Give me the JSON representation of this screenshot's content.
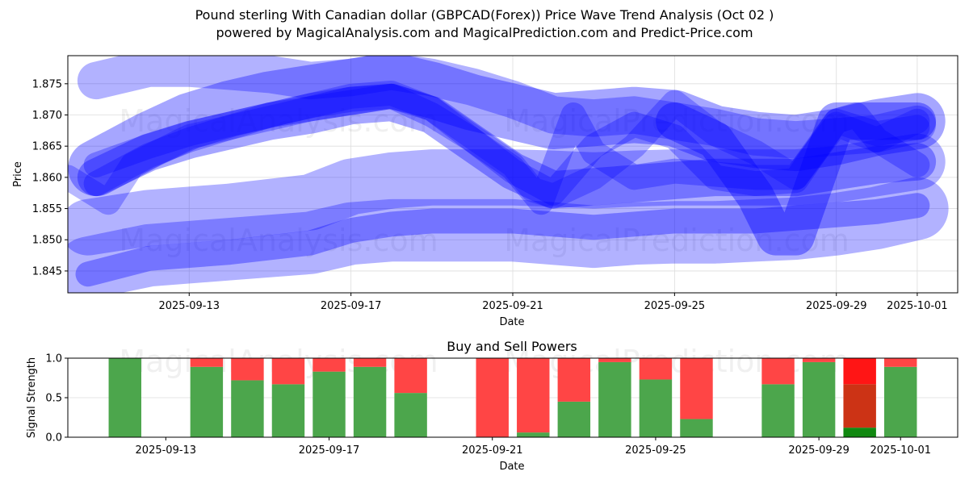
{
  "header": {
    "title_line1": "Pound sterling With Canadian dollar (GBPCAD(Forex)) Price Wave Trend Analysis (Oct 02 )",
    "title_line2": "powered by MagicalAnalysis.com and MagicalPrediction.com and Predict-Price.com"
  },
  "watermarks": [
    "MagicalAnalysis.com",
    "MagicalPrediction.com"
  ],
  "colors": {
    "band": "#0000ff",
    "buy": "#4ca64c",
    "sell": "#ff4545",
    "buy_dark": "#118811",
    "sell_dark": "#cc3315",
    "sell_bright": "#ff1515",
    "grid": "#dddddd"
  },
  "chart_data": [
    {
      "type": "area",
      "name": "price-wave-trend",
      "title": "",
      "xlabel": "Date",
      "ylabel": "Price",
      "date_origin": "2025-09-10",
      "xlim_days": [
        0.0,
        22.0
      ],
      "ylim": [
        1.8415,
        1.8795
      ],
      "yticks": [
        1.845,
        1.85,
        1.855,
        1.86,
        1.865,
        1.87,
        1.875
      ],
      "ytick_labels": [
        "1.845",
        "1.850",
        "1.855",
        "1.860",
        "1.865",
        "1.870",
        "1.875"
      ],
      "xticks_days": [
        3,
        7,
        11,
        15,
        19,
        21
      ],
      "xtick_labels": [
        "2025-09-13",
        "2025-09-17",
        "2025-09-21",
        "2025-09-25",
        "2025-09-29",
        "2025-10-01"
      ],
      "grid": true,
      "series": [
        {
          "name": "upper-wave-a",
          "width": 0.006,
          "opacity": 0.3,
          "x": [
            0.7,
            2,
            3,
            4,
            5,
            6,
            7,
            8,
            9,
            10,
            11,
            12,
            13,
            14,
            15,
            16,
            17,
            18,
            19,
            20,
            21
          ],
          "y": [
            1.8755,
            1.8775,
            1.8775,
            1.877,
            1.8765,
            1.8755,
            1.876,
            1.877,
            1.876,
            1.8745,
            1.8725,
            1.87,
            1.8695,
            1.87,
            1.869,
            1.868,
            1.8665,
            1.866,
            1.8665,
            1.867,
            1.8685
          ]
        },
        {
          "name": "upper-wave-b",
          "width": 0.009,
          "opacity": 0.35,
          "x": [
            0.7,
            2,
            3,
            4,
            5,
            6,
            7,
            8,
            9,
            10,
            11,
            12,
            13,
            14,
            15,
            16,
            17,
            18,
            19,
            20,
            21
          ],
          "y": [
            1.8615,
            1.866,
            1.869,
            1.871,
            1.8725,
            1.8735,
            1.8745,
            1.8755,
            1.874,
            1.872,
            1.8705,
            1.869,
            1.8695,
            1.87,
            1.8695,
            1.867,
            1.866,
            1.8655,
            1.8665,
            1.868,
            1.869
          ]
        },
        {
          "name": "volatile-wave-a",
          "width": 0.004,
          "opacity": 0.28,
          "x": [
            0.0,
            1.0,
            1.6,
            3,
            4,
            5,
            6,
            7,
            8,
            9,
            10,
            11,
            11.5,
            12,
            13,
            14,
            15,
            16,
            17,
            18,
            19,
            20,
            21
          ],
          "y": [
            1.86,
            1.856,
            1.862,
            1.8665,
            1.868,
            1.87,
            1.8715,
            1.873,
            1.8735,
            1.871,
            1.8665,
            1.862,
            1.858,
            1.857,
            1.86,
            1.865,
            1.872,
            1.867,
            1.864,
            1.86,
            1.8685,
            1.866,
            1.869
          ]
        },
        {
          "name": "volatile-wave-b",
          "width": 0.004,
          "opacity": 0.3,
          "x": [
            0.7,
            2,
            3,
            4,
            5,
            6,
            7,
            8,
            9,
            10,
            11,
            12,
            13,
            14,
            15,
            16,
            17,
            18,
            19,
            20,
            21
          ],
          "y": [
            1.862,
            1.865,
            1.867,
            1.8685,
            1.87,
            1.8715,
            1.8725,
            1.873,
            1.87,
            1.866,
            1.861,
            1.8575,
            1.865,
            1.8685,
            1.8665,
            1.86,
            1.859,
            1.8595,
            1.869,
            1.867,
            1.868
          ]
        },
        {
          "name": "volatile-wave-c",
          "width": 0.004,
          "opacity": 0.3,
          "x": [
            0.7,
            2,
            3,
            4,
            5,
            6,
            7,
            8,
            9,
            10,
            11,
            11.7,
            12.5,
            13,
            14,
            15,
            16,
            17,
            18,
            19,
            19.5,
            20,
            21
          ],
          "y": [
            1.859,
            1.8635,
            1.866,
            1.868,
            1.8695,
            1.871,
            1.872,
            1.873,
            1.871,
            1.866,
            1.8615,
            1.856,
            1.87,
            1.864,
            1.86,
            1.861,
            1.8605,
            1.86,
            1.86,
            1.869,
            1.87,
            1.866,
            1.862
          ]
        },
        {
          "name": "mid-wave",
          "width": 0.006,
          "opacity": 0.35,
          "x": [
            0.7,
            2,
            3,
            4,
            5,
            6,
            7,
            8,
            9,
            10,
            11,
            12,
            13,
            14,
            15,
            16,
            17,
            18,
            19,
            20,
            21
          ],
          "y": [
            1.86,
            1.864,
            1.866,
            1.8675,
            1.869,
            1.87,
            1.8715,
            1.872,
            1.87,
            1.8655,
            1.861,
            1.858,
            1.8585,
            1.859,
            1.8595,
            1.86,
            1.86,
            1.86,
            1.861,
            1.862,
            1.8625
          ]
        },
        {
          "name": "deep-wave",
          "width": 0.006,
          "opacity": 0.38,
          "x": [
            15,
            16,
            17,
            17.5,
            18,
            19,
            20,
            21
          ],
          "y": [
            1.869,
            1.866,
            1.857,
            1.8505,
            1.8505,
            1.869,
            1.869,
            1.869
          ]
        },
        {
          "name": "lower-wave-a",
          "width": 0.009,
          "opacity": 0.3,
          "x": [
            0.5,
            2,
            4,
            6,
            7,
            8,
            9,
            10,
            11,
            12,
            13,
            14,
            15,
            16,
            17,
            18,
            19,
            20,
            21
          ],
          "y": [
            1.852,
            1.8535,
            1.8545,
            1.856,
            1.8585,
            1.8595,
            1.86,
            1.86,
            1.86,
            1.8598,
            1.8595,
            1.8598,
            1.86,
            1.86,
            1.86,
            1.86,
            1.8605,
            1.8615,
            1.8625
          ]
        },
        {
          "name": "lower-wave-b",
          "width": 0.01,
          "opacity": 0.3,
          "x": [
            0.5,
            2,
            4,
            6,
            7,
            8,
            9,
            10,
            11,
            12,
            13,
            14,
            15,
            16,
            17,
            18,
            19,
            20,
            21
          ],
          "y": [
            1.8455,
            1.8475,
            1.8485,
            1.8495,
            1.851,
            1.8515,
            1.8515,
            1.8515,
            1.8515,
            1.851,
            1.8505,
            1.851,
            1.8512,
            1.8512,
            1.8515,
            1.8518,
            1.8525,
            1.8535,
            1.855
          ]
        },
        {
          "name": "lower-wave-core",
          "width": 0.004,
          "opacity": 0.35,
          "x": [
            0.5,
            2,
            4,
            6,
            7,
            8,
            9,
            10,
            11,
            12,
            13,
            14,
            15,
            16,
            17,
            18,
            19,
            20,
            21
          ],
          "y": [
            1.8445,
            1.847,
            1.848,
            1.8495,
            1.8515,
            1.8525,
            1.853,
            1.853,
            1.853,
            1.8525,
            1.852,
            1.8525,
            1.853,
            1.853,
            1.853,
            1.8535,
            1.854,
            1.8545,
            1.8555
          ]
        }
      ]
    },
    {
      "type": "bar",
      "name": "buy-sell-powers",
      "title": "Buy and Sell Powers",
      "xlabel": "Date",
      "ylabel": "Signal Strength",
      "date_origin": "2025-09-10",
      "xlim_days": [
        0.6,
        22.4
      ],
      "ylim": [
        0.0,
        1.0
      ],
      "yticks": [
        0.0,
        0.5,
        1.0
      ],
      "ytick_labels": [
        "0.0",
        "0.5",
        "1.0"
      ],
      "xticks_days": [
        3,
        7,
        11,
        15,
        19,
        21
      ],
      "xtick_labels": [
        "2025-09-13",
        "2025-09-17",
        "2025-09-21",
        "2025-09-25",
        "2025-09-29",
        "2025-10-01"
      ],
      "grid": true,
      "categories": [
        "2025-09-12",
        "2025-09-14",
        "2025-09-15",
        "2025-09-16",
        "2025-09-17",
        "2025-09-18",
        "2025-09-19",
        "2025-09-21",
        "2025-09-22",
        "2025-09-23",
        "2025-09-24",
        "2025-09-25",
        "2025-09-26",
        "2025-09-28",
        "2025-09-29",
        "2025-09-30",
        "2025-10-01"
      ],
      "days": [
        2,
        4,
        5,
        6,
        7,
        8,
        9,
        11,
        12,
        13,
        14,
        15,
        16,
        18,
        19,
        20,
        21
      ],
      "series": [
        {
          "name": "Buy",
          "values": [
            1.0,
            0.89,
            0.72,
            0.67,
            0.83,
            0.89,
            0.56,
            0.0,
            0.06,
            0.45,
            0.95,
            0.73,
            0.23,
            0.67,
            0.95,
            0.12,
            0.89
          ]
        },
        {
          "name": "Sell",
          "values": [
            0.0,
            0.11,
            0.28,
            0.33,
            0.17,
            0.11,
            0.44,
            1.0,
            0.94,
            0.55,
            0.05,
            0.27,
            0.77,
            0.33,
            0.05,
            0.88,
            0.11
          ]
        }
      ],
      "highlight": {
        "category": "2025-09-30",
        "buy": 0.12,
        "sell_mid_top": 0.67,
        "sell_top": 1.0
      }
    }
  ]
}
